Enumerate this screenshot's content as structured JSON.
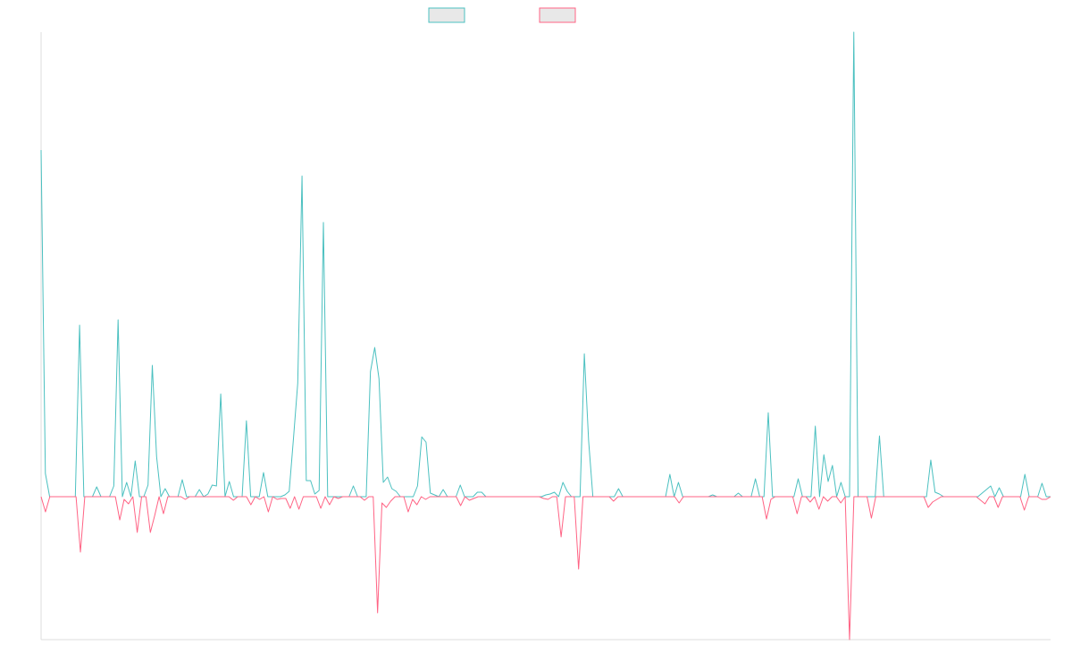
{
  "chart_data": {
    "type": "line",
    "title": "",
    "xlabel": "",
    "ylabel": "",
    "ylim": [
      -160,
      520
    ],
    "grid": false,
    "legend": "top-center",
    "colors": {
      "series_1": "#4bc0c0",
      "series_1_fill": "#e8e8e8",
      "series_2": "#ff6384",
      "series_2_fill": "#e8e8e8",
      "axis": "#dddddd"
    },
    "series": [
      {
        "values": [
          388,
          26,
          0,
          0,
          0,
          0,
          0,
          0,
          0,
          192,
          0,
          0,
          0,
          11,
          0,
          0,
          0,
          12,
          198,
          0,
          16,
          0,
          40,
          0,
          0,
          13,
          147,
          45,
          0,
          9,
          0,
          0,
          0,
          19,
          0,
          0,
          0,
          8,
          0,
          3,
          13,
          12,
          115,
          0,
          17,
          0,
          0,
          0,
          85,
          0,
          0,
          0,
          27,
          0,
          0,
          0,
          0,
          2,
          6,
          65,
          127,
          359,
          18,
          18,
          3,
          7,
          307,
          0,
          0,
          0,
          0,
          0,
          0,
          12,
          0,
          0,
          0,
          140,
          167,
          132,
          16,
          22,
          9,
          6,
          0,
          0,
          0,
          0,
          12,
          67,
          61,
          4,
          2,
          0,
          8,
          0,
          0,
          0,
          13,
          0,
          0,
          0,
          5,
          5,
          0,
          0,
          0,
          0,
          0,
          0,
          0,
          0,
          0,
          0,
          0,
          0,
          0,
          0,
          2,
          3,
          5,
          0,
          16,
          6,
          0,
          0,
          0,
          160,
          63,
          0,
          0,
          0,
          0,
          0,
          0,
          9,
          0,
          0,
          0,
          0,
          0,
          0,
          0,
          0,
          0,
          0,
          0,
          25,
          0,
          16,
          0,
          0,
          0,
          0,
          0,
          0,
          0,
          2,
          0,
          0,
          0,
          0,
          0,
          4,
          0,
          0,
          0,
          20,
          0,
          0,
          94,
          0,
          0,
          0,
          0,
          0,
          0,
          20,
          0,
          0,
          0,
          79,
          0,
          47,
          17,
          35,
          0,
          16,
          0,
          0,
          520,
          0,
          0,
          0,
          0,
          0,
          68,
          0,
          0,
          0,
          0,
          0,
          0,
          0,
          0,
          0,
          0,
          0,
          41,
          5,
          3,
          0,
          0,
          0,
          0,
          0,
          0,
          0,
          0,
          0,
          4,
          8,
          12,
          0,
          10,
          0,
          0,
          0,
          0,
          0,
          25,
          0,
          0,
          0,
          15,
          0,
          0
        ]
      },
      {
        "values": [
          0,
          -17,
          0,
          0,
          0,
          0,
          0,
          0,
          0,
          -62,
          0,
          0,
          0,
          0,
          0,
          0,
          0,
          0,
          -26,
          -3,
          -8,
          0,
          -40,
          0,
          0,
          -40,
          -21,
          0,
          -19,
          0,
          0,
          0,
          0,
          -3,
          0,
          0,
          0,
          0,
          0,
          0,
          0,
          0,
          0,
          0,
          -4,
          0,
          0,
          0,
          -9,
          0,
          -3,
          0,
          -17,
          0,
          -3,
          -2,
          -2,
          -13,
          0,
          -14,
          0,
          0,
          0,
          0,
          -13,
          0,
          -9,
          0,
          -2,
          0,
          0,
          0,
          0,
          0,
          -4,
          0,
          0,
          -130,
          -7,
          -12,
          -5,
          0,
          0,
          0,
          -17,
          -3,
          -9,
          0,
          -3,
          0,
          0,
          0,
          0,
          0,
          0,
          0,
          -10,
          0,
          -4,
          -2,
          0,
          0,
          0,
          0,
          0,
          0,
          0,
          0,
          0,
          0,
          0,
          0,
          0,
          0,
          0,
          -2,
          -3,
          0,
          0,
          -45,
          0,
          0,
          0,
          -81,
          0,
          0,
          0,
          0,
          0,
          0,
          0,
          -5,
          0,
          0,
          0,
          0,
          0,
          0,
          0,
          0,
          0,
          0,
          0,
          0,
          0,
          0,
          -7,
          0,
          0,
          0,
          0,
          0,
          0,
          0,
          0,
          0,
          0,
          0,
          0,
          0,
          0,
          0,
          0,
          0,
          0,
          0,
          -25,
          -3,
          0,
          0,
          0,
          0,
          0,
          -19,
          0,
          0,
          -6,
          0,
          -14,
          0,
          -5,
          0,
          0,
          -7,
          0,
          -160,
          0,
          0,
          0,
          0,
          -24,
          0,
          0,
          0,
          0,
          0,
          0,
          0,
          0,
          0,
          0,
          0,
          0,
          -12,
          -6,
          -3,
          0,
          0,
          0,
          0,
          0,
          0,
          0,
          0,
          0,
          -4,
          -8,
          0,
          0,
          -12,
          0,
          0,
          0,
          0,
          0,
          -15,
          0,
          0,
          0,
          -3,
          -3,
          0
        ]
      }
    ]
  }
}
